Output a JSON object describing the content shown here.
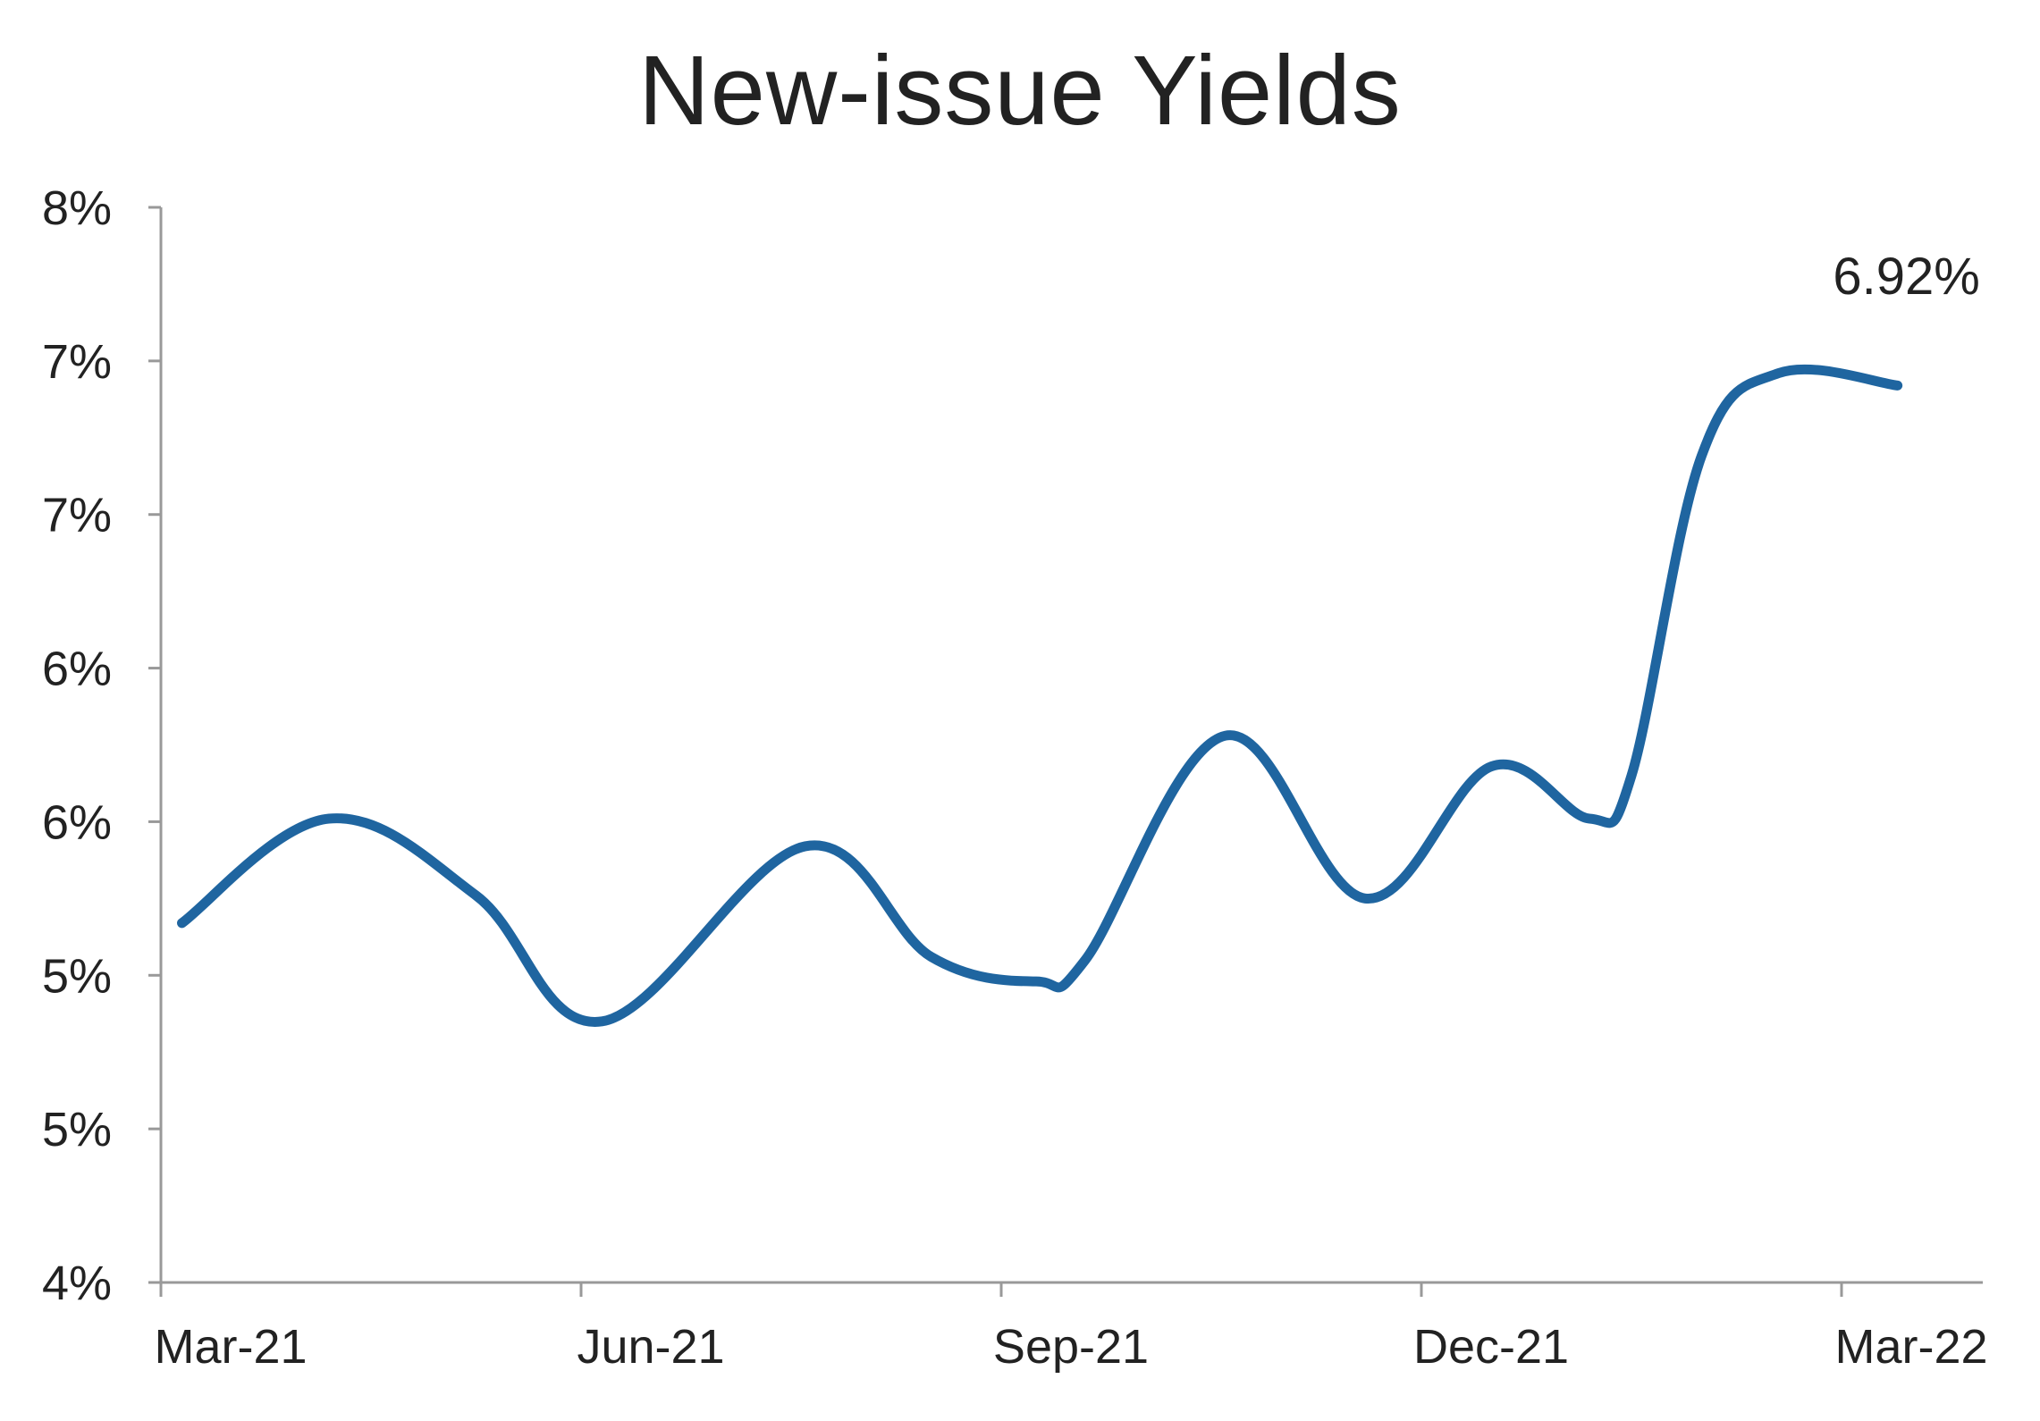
{
  "chart_data": {
    "type": "line",
    "title": "New-issue Yields",
    "xlabel": "",
    "ylabel": "",
    "x_tick_labels": [
      "Mar-21",
      "Jun-21",
      "Sep-21",
      "Dec-21",
      "Mar-22"
    ],
    "y_tick_labels": [
      "4%",
      "5%",
      "5%",
      "6%",
      "6%",
      "7%",
      "7%",
      "8%"
    ],
    "ylim": [
      4.0,
      7.5
    ],
    "y_tick_values": [
      4.0,
      4.5,
      5.0,
      5.5,
      6.0,
      6.5,
      7.0,
      7.5
    ],
    "x_range_months": [
      0,
      12
    ],
    "series": [
      {
        "color": "#1f65a0",
        "points": [
          {
            "x": 0.15,
            "y": 5.17
          },
          {
            "x": 1.2,
            "y": 5.51
          },
          {
            "x": 2.25,
            "y": 5.26
          },
          {
            "x": 3.15,
            "y": 4.85
          },
          {
            "x": 4.6,
            "y": 5.42
          },
          {
            "x": 5.5,
            "y": 5.06
          },
          {
            "x": 6.25,
            "y": 4.98
          },
          {
            "x": 6.6,
            "y": 5.05
          },
          {
            "x": 7.6,
            "y": 5.78
          },
          {
            "x": 8.6,
            "y": 5.25
          },
          {
            "x": 9.5,
            "y": 5.68
          },
          {
            "x": 10.2,
            "y": 5.51
          },
          {
            "x": 10.5,
            "y": 5.65
          },
          {
            "x": 11.0,
            "y": 6.69
          },
          {
            "x": 11.55,
            "y": 6.96
          },
          {
            "x": 12.4,
            "y": 6.92
          }
        ]
      }
    ],
    "annotations": [
      {
        "text": "6.92%",
        "x": 12.4,
        "y": 6.92
      }
    ],
    "grid": false,
    "legend": "none"
  }
}
